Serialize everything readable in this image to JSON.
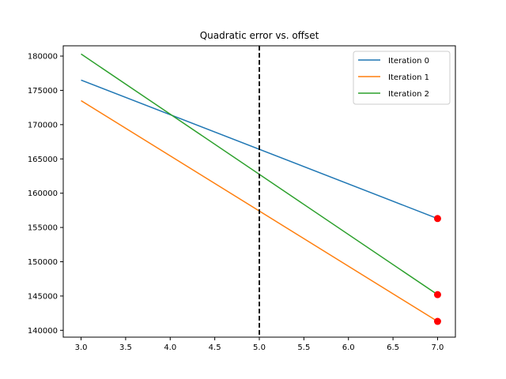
{
  "chart_data": {
    "type": "line",
    "title": "Quadratic error vs. offset",
    "xlabel": "",
    "ylabel": "",
    "xlim": [
      2.8,
      7.2
    ],
    "ylim": [
      139000,
      181500
    ],
    "x_ticks": [
      3.0,
      3.5,
      4.0,
      4.5,
      5.0,
      5.5,
      6.0,
      6.5,
      7.0
    ],
    "x_tick_labels": [
      "3.0",
      "3.5",
      "4.0",
      "4.5",
      "5.0",
      "5.5",
      "6.0",
      "6.5",
      "7.0"
    ],
    "y_ticks": [
      140000,
      145000,
      150000,
      155000,
      160000,
      165000,
      170000,
      175000,
      180000
    ],
    "y_tick_labels": [
      "140000",
      "145000",
      "150000",
      "155000",
      "160000",
      "165000",
      "170000",
      "175000",
      "180000"
    ],
    "grid": false,
    "legend_position": "top-right",
    "series": [
      {
        "name": "Iteration 0",
        "color": "#1f77b4",
        "x": [
          3.0,
          7.0
        ],
        "y": [
          176500,
          156300
        ]
      },
      {
        "name": "Iteration 1",
        "color": "#ff7f0e",
        "x": [
          3.0,
          7.0
        ],
        "y": [
          173500,
          141300
        ]
      },
      {
        "name": "Iteration 2",
        "color": "#2ca02c",
        "x": [
          3.0,
          7.0
        ],
        "y": [
          180300,
          145200
        ]
      }
    ],
    "vertical_line": {
      "x": 5.0,
      "style": "dashed",
      "color": "#000000"
    },
    "markers": {
      "color": "#ff0000",
      "points": [
        [
          7.0,
          156300
        ],
        [
          7.0,
          145200
        ],
        [
          7.0,
          141300
        ]
      ]
    }
  }
}
